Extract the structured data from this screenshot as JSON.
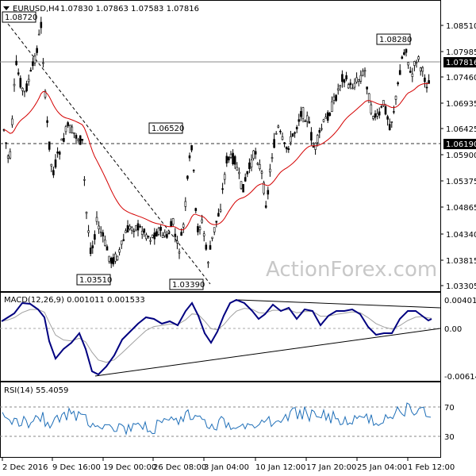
{
  "header": {
    "symbol": "EURUSD,H4",
    "ohlc": "1.07830 1.07863 1.07583 1.07816"
  },
  "watermark": "ActionForex.com",
  "colors": {
    "candle": "#000000",
    "ma": "#d40000",
    "macd_main": "#000080",
    "macd_signal": "#a0a0a0",
    "rsi": "#1f6fb8",
    "grid_border": "#000000"
  },
  "price_axis": {
    "ticks": [
      "1.08510",
      "1.07985",
      "1.07460",
      "1.06935",
      "1.06425",
      "1.05900",
      "1.05375",
      "1.04865",
      "1.04340",
      "1.03815",
      "1.03305"
    ],
    "current_label": "1.07816",
    "line_label": "1.06190"
  },
  "annotations": [
    {
      "text": "1.08720"
    },
    {
      "text": "1.06520"
    },
    {
      "text": "1.03510"
    },
    {
      "text": "1.03390"
    },
    {
      "text": "1.08280"
    }
  ],
  "macd": {
    "title": "MACD(12,26,9) 0.001011 0.001533",
    "ticks": [
      "0.004011",
      "0.00",
      "-0.006143"
    ]
  },
  "rsi": {
    "title": "RSI(14) 55.4059",
    "ticks": [
      "70",
      "30"
    ]
  },
  "time_axis": {
    "labels": [
      "2 Dec 2016",
      "9 Dec 16:00",
      "19 Dec 00:00",
      "26 Dec 08:00",
      "3 Jan 04:00",
      "10 Jan 12:00",
      "17 Jan 20:00",
      "25 Jan 04:00",
      "1 Feb 12:00"
    ]
  }
}
